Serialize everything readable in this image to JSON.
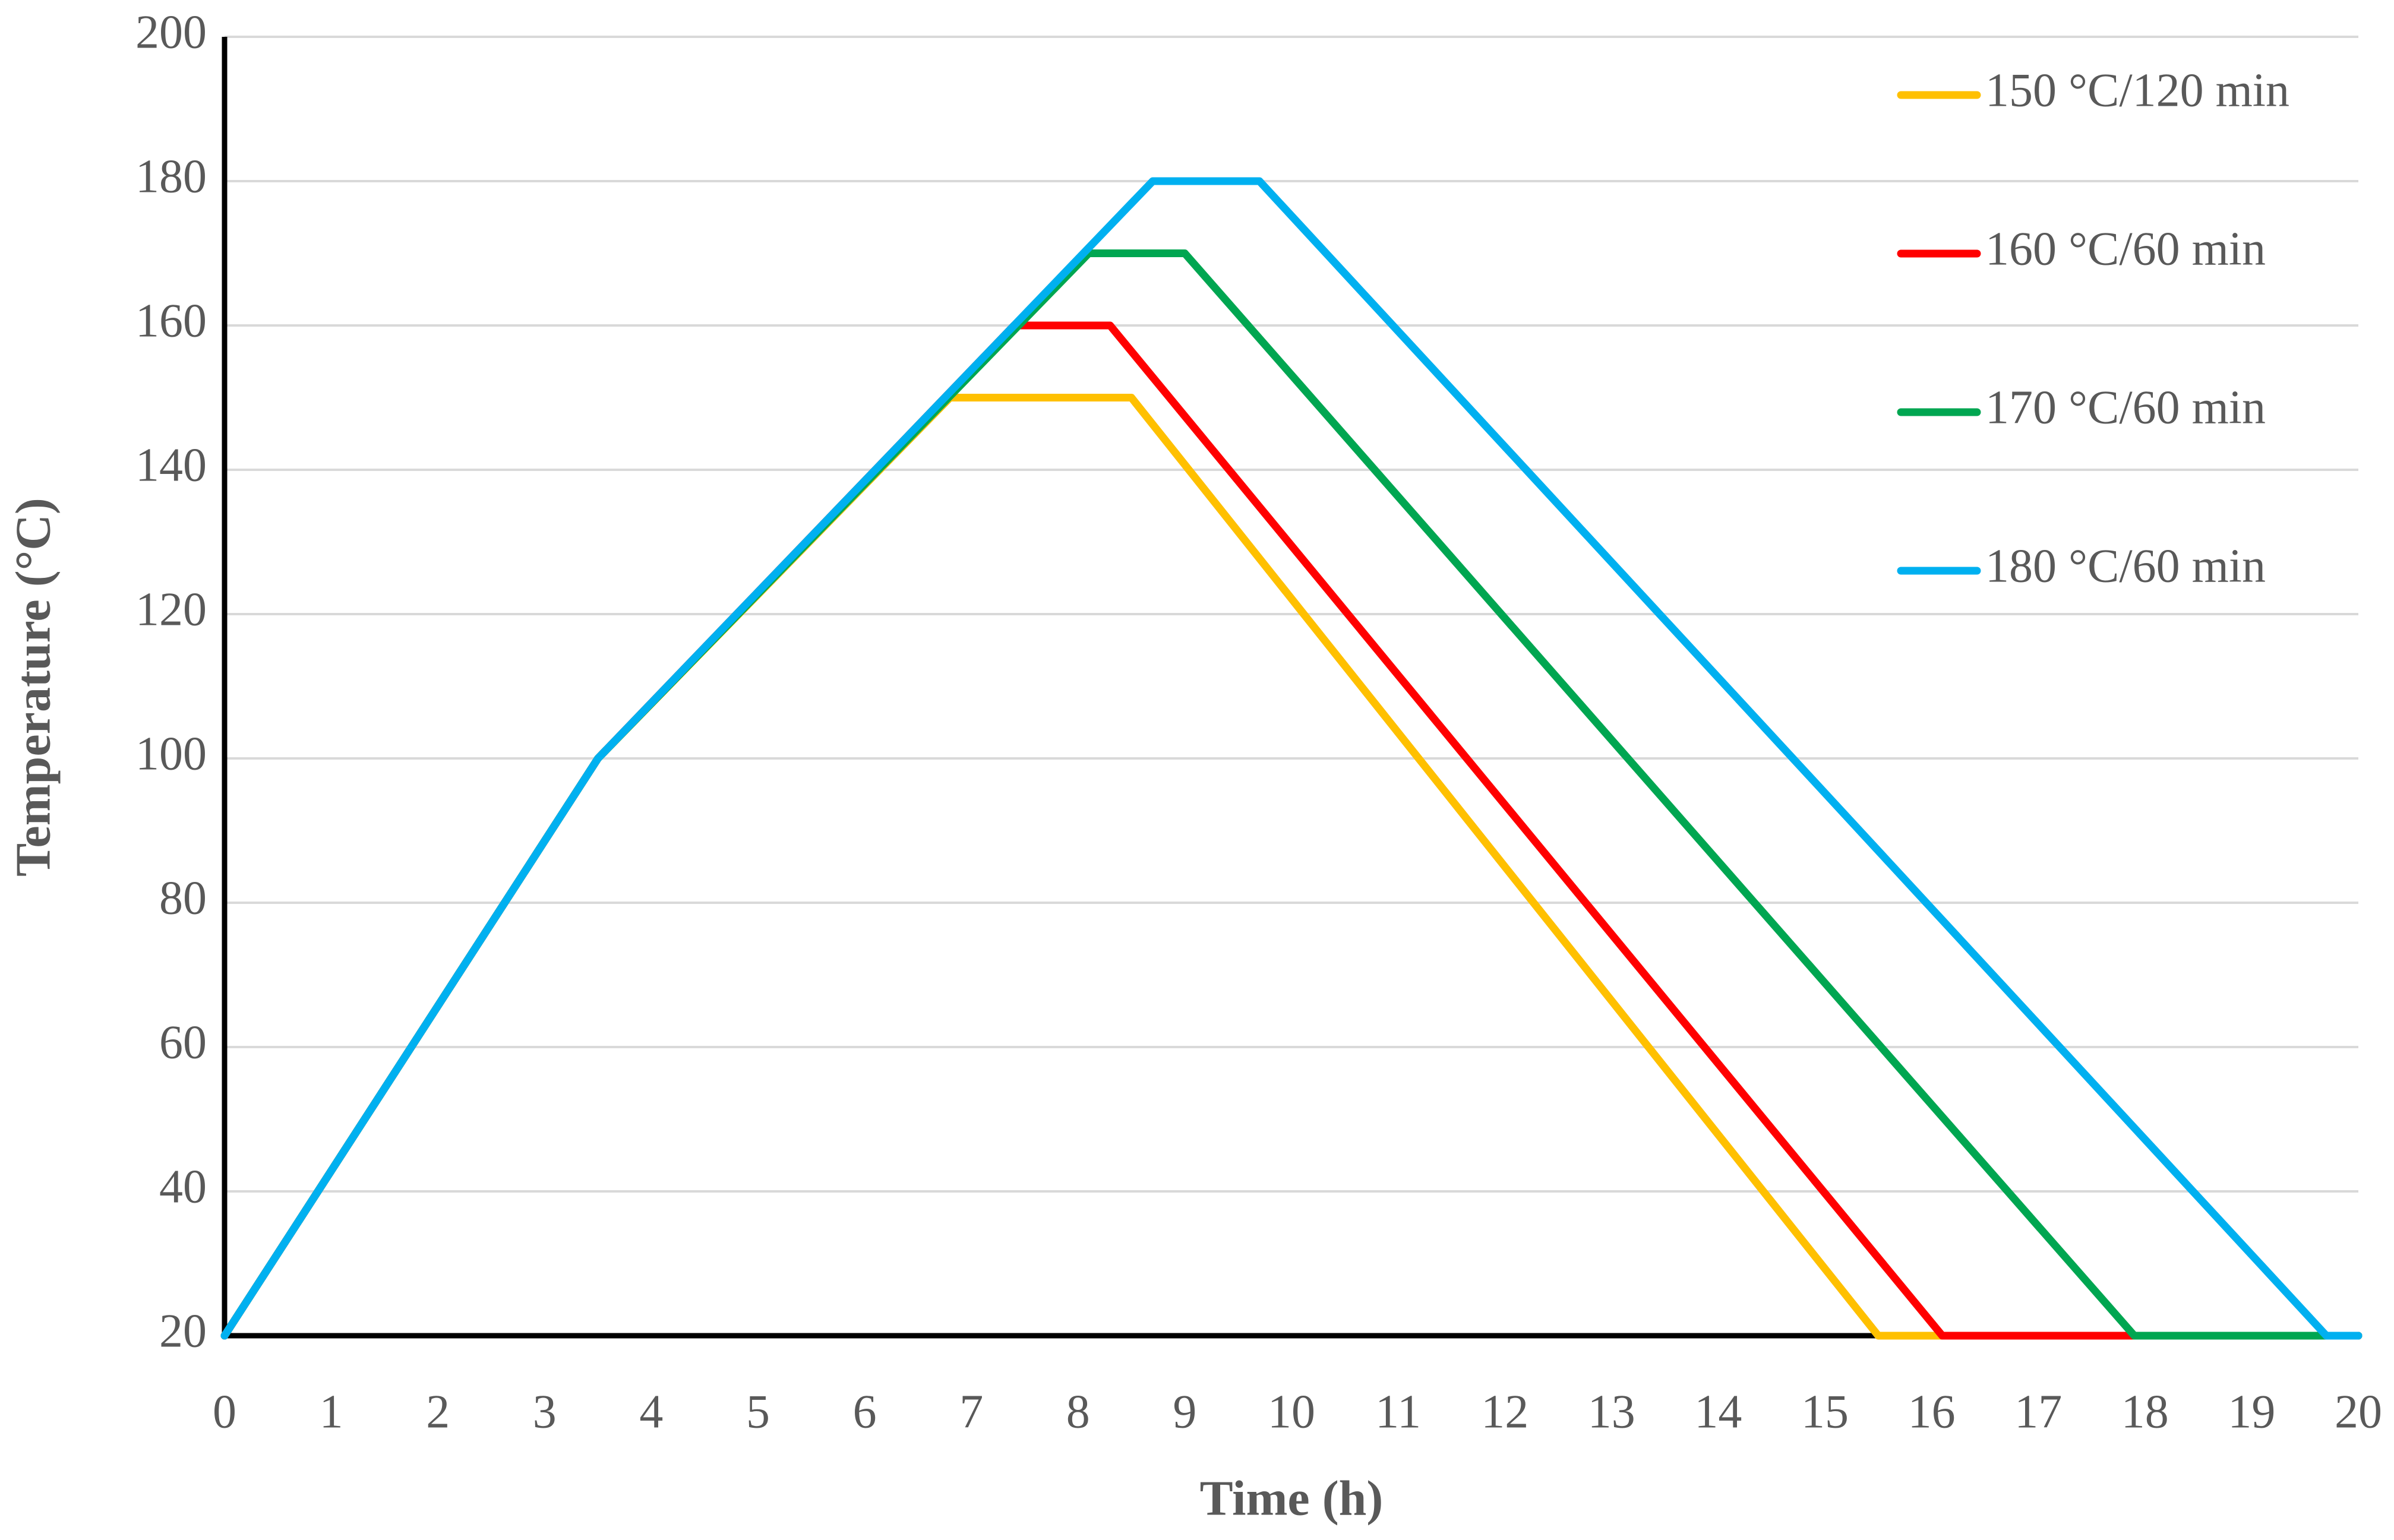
{
  "chart_data": {
    "type": "line",
    "xlabel": "Time (h)",
    "ylabel": "Temperature (°C)",
    "xlim": [
      0,
      20
    ],
    "xticks": [
      0,
      1,
      2,
      3,
      4,
      5,
      6,
      7,
      8,
      9,
      10,
      11,
      12,
      13,
      14,
      15,
      16,
      17,
      18,
      19,
      20
    ],
    "ylim": [
      20,
      200
    ],
    "yticks": [
      20,
      40,
      60,
      80,
      100,
      120,
      140,
      160,
      180,
      200
    ],
    "grid": true,
    "legend": "upper right",
    "series": [
      {
        "name": "150 °C/120 min",
        "color": "#ffc000",
        "x": [
          0,
          3.5,
          6.8,
          8.5,
          15.5,
          20
        ],
        "values": [
          20,
          100,
          150,
          150,
          20,
          20
        ]
      },
      {
        "name": "160 °C/60 min",
        "color": "#ff0000",
        "x": [
          0,
          3.5,
          7.4,
          8.3,
          16.1,
          20
        ],
        "values": [
          20,
          100,
          160,
          160,
          20,
          20
        ]
      },
      {
        "name": "170 °C/60 min",
        "color": "#00a651",
        "x": [
          0,
          3.5,
          8.1,
          9.0,
          17.9,
          20
        ],
        "values": [
          20,
          100,
          170,
          170,
          20,
          20
        ]
      },
      {
        "name": "180 °C/60 min",
        "color": "#00b0f0",
        "x": [
          0,
          3.5,
          8.7,
          9.7,
          19.7,
          20
        ],
        "values": [
          20,
          100,
          180,
          180,
          20,
          20
        ]
      }
    ]
  }
}
